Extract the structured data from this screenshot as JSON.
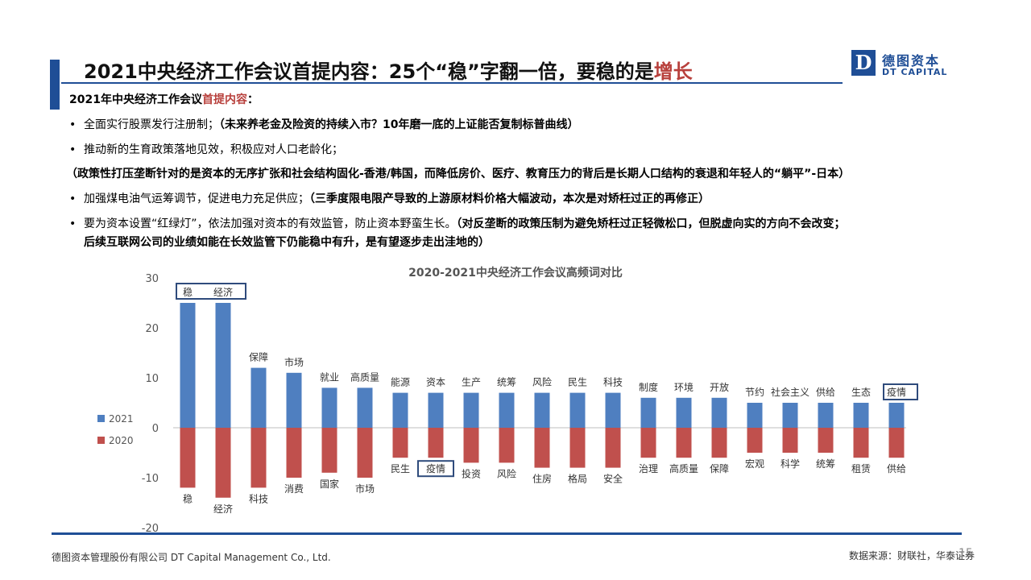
{
  "header": {
    "title_main": "2021中央经济工作会议首提内容：25个“稳”字翻一倍，要稳的是",
    "title_highlight": "增长",
    "logo_letter": "D",
    "logo_cn": "德图资本",
    "logo_en": "DT CAPITAL"
  },
  "intro": {
    "prefix": "2021年中央经济工作会议",
    "highlight": "首提内容",
    "suffix": "："
  },
  "bullets": [
    {
      "bullet": "•",
      "text": "全面实行股票发行注册制；",
      "bold": "（未来养老金及险资的持续入市？10年磨一底的上证能否复制标普曲线）"
    },
    {
      "bullet": "•",
      "text": "推动新的生育政策落地见效，积极应对人口老龄化；",
      "bold": ""
    },
    {
      "bullet": "",
      "text": "",
      "bold": "（政策性打压垄断针对的是资本的无序扩张和社会结构固化-香港/韩国，而降低房价、医疗、教育压力的背后是长期人口结构的衰退和年轻人的“躺平”-日本）"
    },
    {
      "bullet": "•",
      "text": "加强煤电油气运筹调节，促进电力充足供应；",
      "bold": "（三季度限电限产导致的上游原材料价格大幅波动，本次是对矫枉过正的再修正）"
    },
    {
      "bullet": "•",
      "text": "要为资本设置“红绿灯”，依法加强对资本的有效监管，防止资本野蛮生长。",
      "bold": "（对反垄断的政策压制为避免矫枉过正轻微松口，但脱虚向实的方向不会改变；"
    },
    {
      "bullet": "",
      "text": "",
      "bold": "后续互联网公司的业绩如能在长效监管下仍能稳中有升，是有望逐步走出洼地的）"
    }
  ],
  "chart_data": {
    "type": "bar",
    "title": "2020-2021中央经济工作会议高频词对比",
    "ylim": [
      -20,
      30
    ],
    "yticks": [
      30,
      20,
      10,
      0,
      -10,
      -20
    ],
    "grid": false,
    "legend_position": "left",
    "series": [
      {
        "name": "2021",
        "color": "#4f7fc0",
        "labels": [
          "稳",
          "经济",
          "保障",
          "市场",
          "就业",
          "高质量",
          "能源",
          "资本",
          "生产",
          "统筹",
          "风险",
          "民生",
          "科技",
          "制度",
          "环境",
          "开放",
          "节约",
          "社会主义",
          "供给",
          "生态",
          "疫情"
        ],
        "values": [
          25,
          25,
          12,
          11,
          8,
          8,
          7,
          7,
          7,
          7,
          7,
          7,
          7,
          6,
          6,
          6,
          5,
          5,
          5,
          5,
          5
        ]
      },
      {
        "name": "2020",
        "color": "#c0504d",
        "labels": [
          "稳",
          "经济",
          "科技",
          "消费",
          "国家",
          "市场",
          "民生",
          "疫情",
          "投资",
          "风险",
          "住房",
          "格局",
          "安全",
          "治理",
          "高质量",
          "保障",
          "宏观",
          "科学",
          "统筹",
          "租赁",
          "供给"
        ],
        "values": [
          -12,
          -14,
          -12,
          -10,
          -9,
          -10,
          -6,
          -6,
          -7,
          -7,
          -8,
          -8,
          -8,
          -6,
          -6,
          -6,
          -5,
          -5,
          -5,
          -6,
          -6
        ]
      }
    ],
    "highlight_boxes_2021": [
      "稳",
      "经济",
      "疫情"
    ],
    "highlight_boxes_2020": [
      "疫情"
    ]
  },
  "footer": {
    "company": "德图资本管理股份有限公司 DT Capital Management Co., Ltd.",
    "source": "数据来源：财联社，华泰证券",
    "page": "15"
  }
}
